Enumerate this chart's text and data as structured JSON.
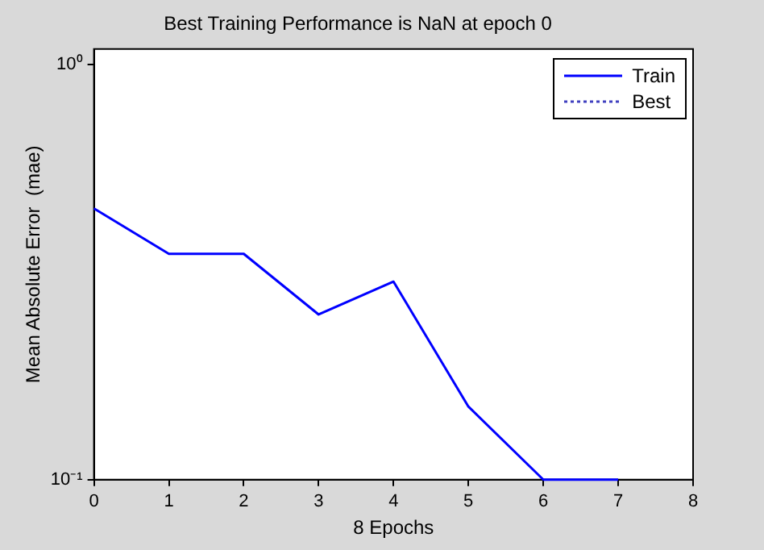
{
  "chart_data": {
    "type": "line",
    "title": "Best Training Performance is NaN at epoch 0",
    "xlabel": "8 Epochs",
    "ylabel": "Mean Absolute Error  (mae)",
    "x": [
      0,
      1,
      2,
      3,
      4,
      5,
      6,
      7
    ],
    "series": [
      {
        "name": "Train",
        "color": "#0000ff",
        "values": [
          0.45,
          0.35,
          0.35,
          0.25,
          0.3,
          0.15,
          0.1,
          0.1
        ],
        "line_style": "solid"
      },
      {
        "name": "Best",
        "color": "#3f3fbf",
        "values": [
          null,
          null,
          null,
          null,
          null,
          null,
          null,
          null
        ],
        "line_style": "dotted"
      }
    ],
    "log": "y",
    "xlim": [
      0,
      8
    ],
    "xticks": [
      0,
      1,
      2,
      3,
      4,
      5,
      6,
      7,
      8
    ],
    "ylim": [
      0.1,
      1.09
    ],
    "yticks": [
      {
        "value": 0.1,
        "label": "10⁻¹"
      },
      {
        "value": 1,
        "label": "10⁰"
      }
    ],
    "grid": false,
    "legend": "top right",
    "marker": "none"
  }
}
